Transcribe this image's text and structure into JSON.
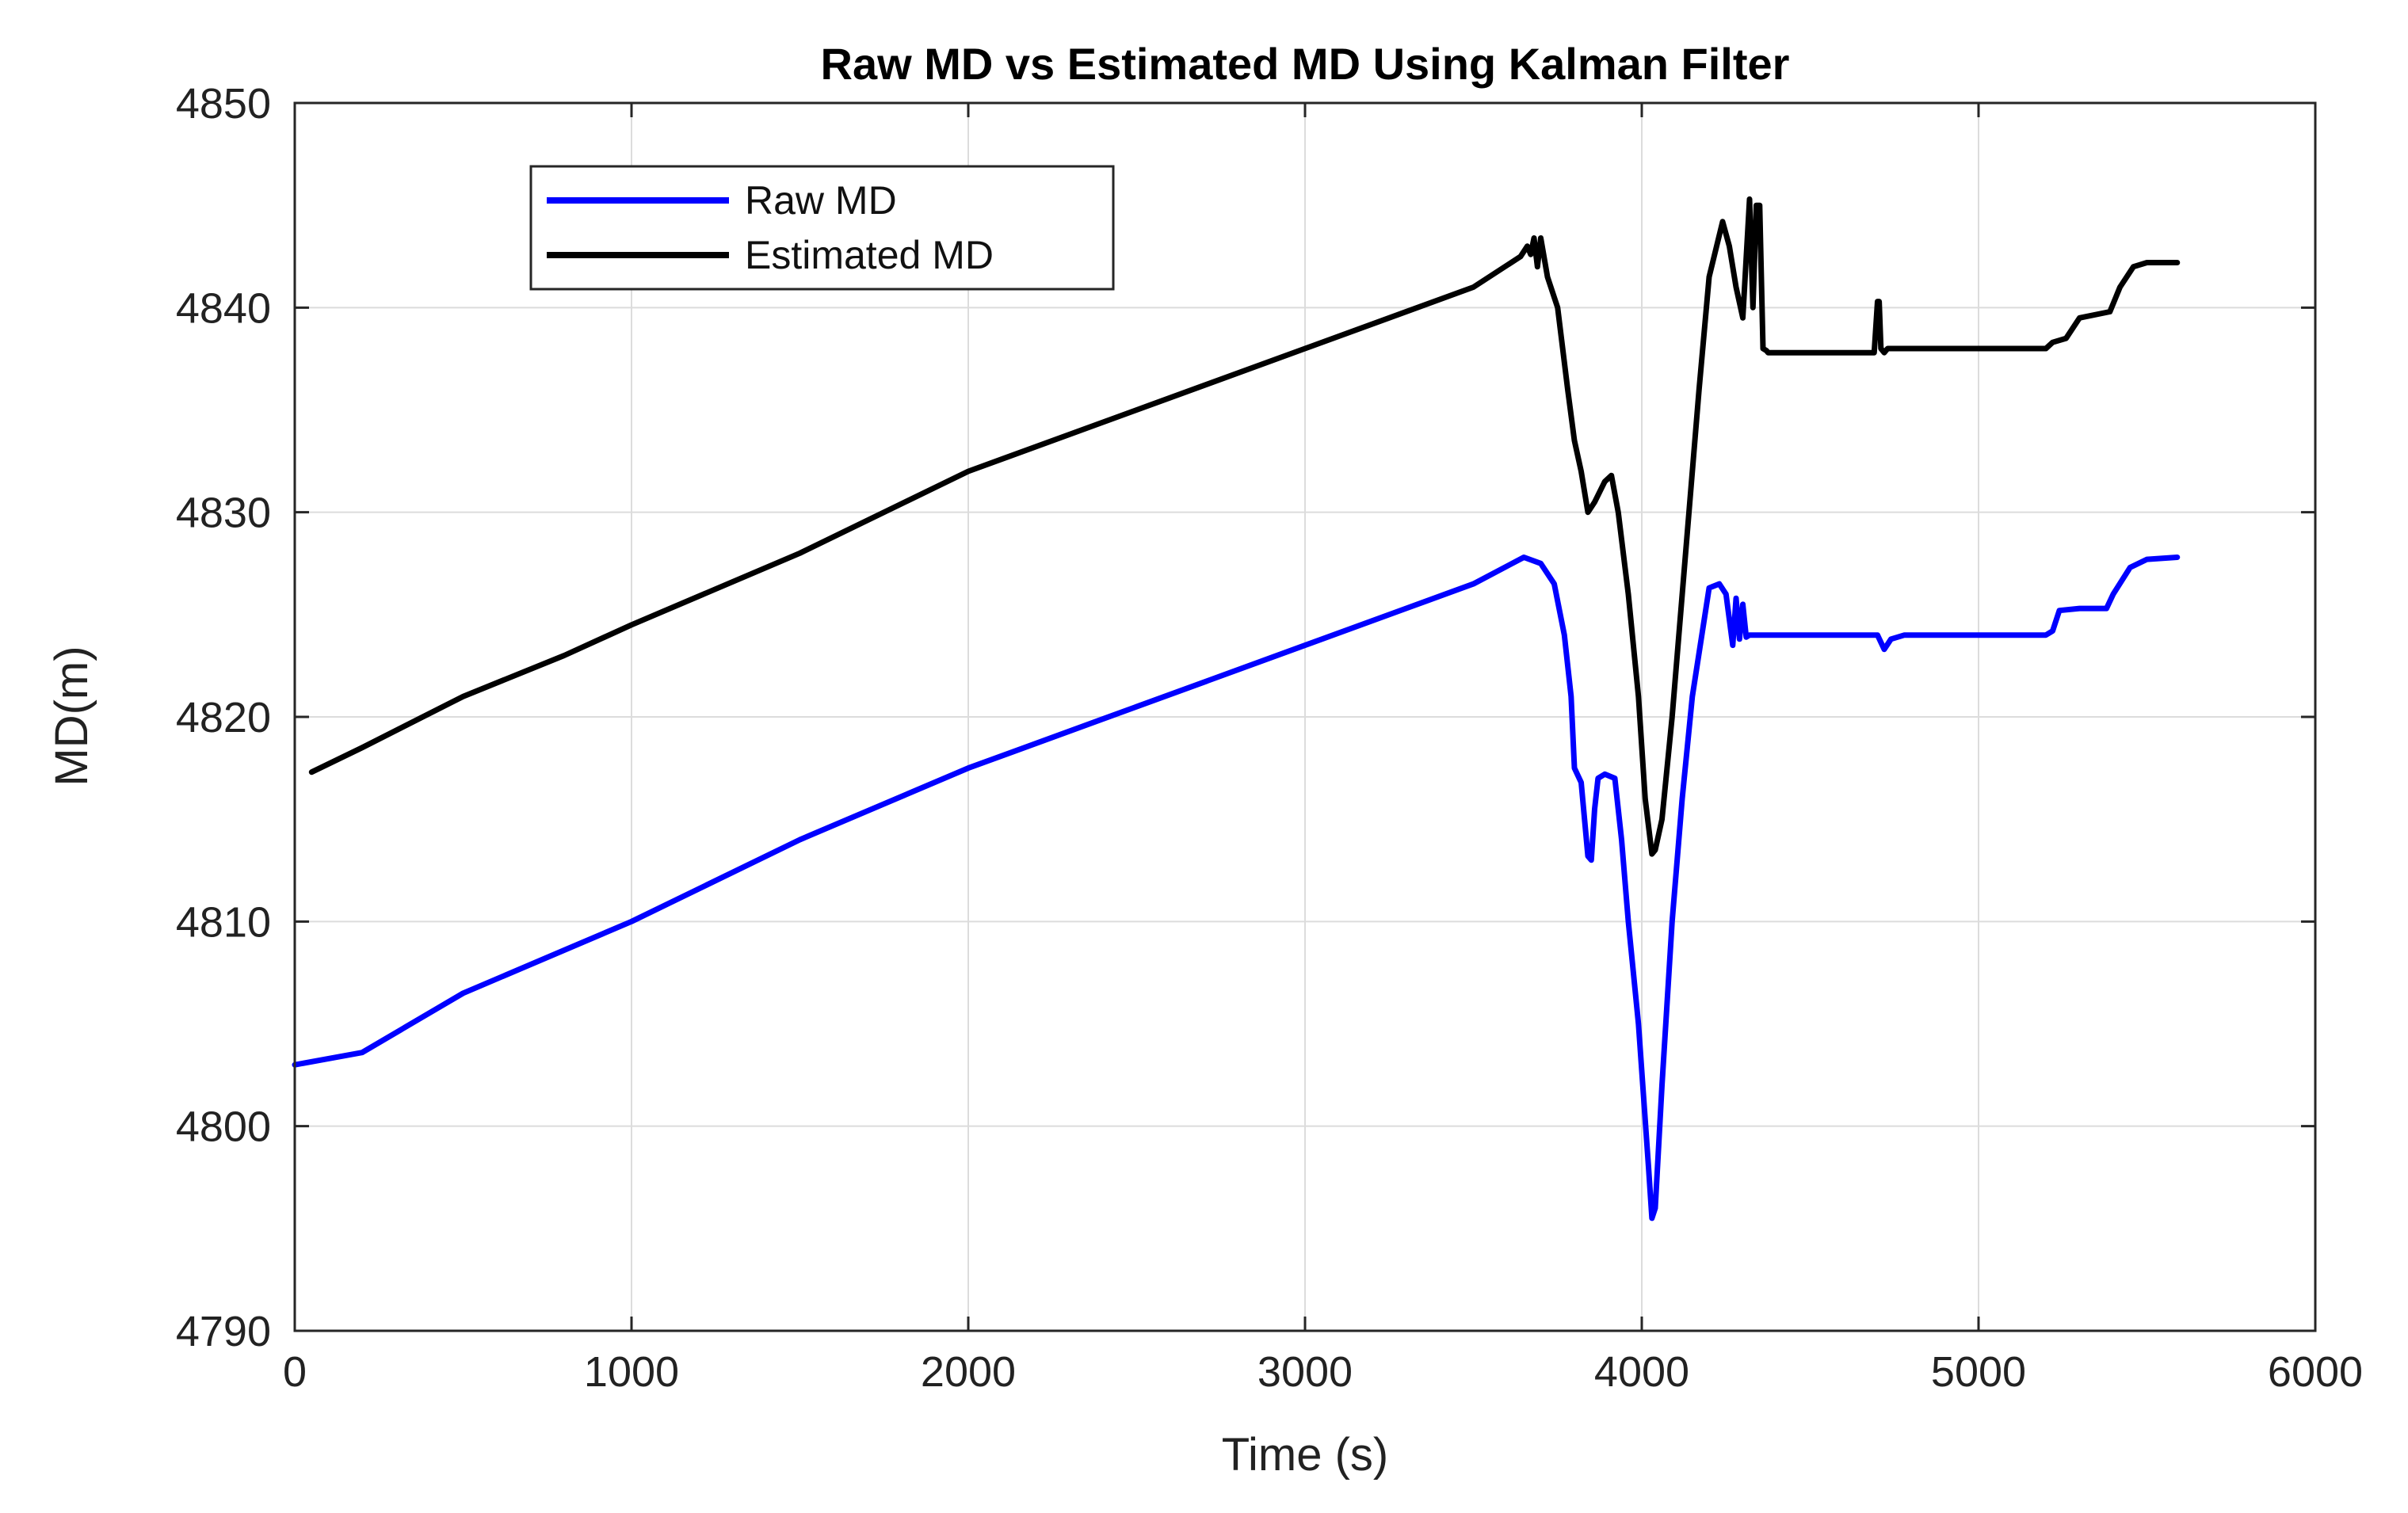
{
  "chart_data": {
    "type": "line",
    "title": "Raw MD vs Estimated MD Using Kalman Filter",
    "xlabel": "Time (s)",
    "ylabel": "MD(m)",
    "xlim": [
      0,
      6000
    ],
    "ylim": [
      4790,
      4850
    ],
    "xticks": [
      0,
      1000,
      2000,
      3000,
      4000,
      5000,
      6000
    ],
    "yticks": [
      4790,
      4800,
      4810,
      4820,
      4830,
      4840,
      4850
    ],
    "grid": true,
    "legend_position": "top-left",
    "series": [
      {
        "name": "Raw MD",
        "color": "#0000ff",
        "x": [
          0,
          200,
          500,
          800,
          1000,
          1500,
          2000,
          2500,
          3000,
          3500,
          3650,
          3700,
          3740,
          3770,
          3790,
          3800,
          3820,
          3840,
          3850,
          3860,
          3870,
          3890,
          3920,
          3940,
          3960,
          3990,
          4020,
          4030,
          4040,
          4060,
          4090,
          4120,
          4150,
          4200,
          4230,
          4250,
          4270,
          4280,
          4290,
          4300,
          4310,
          4320,
          4340,
          4400,
          4600,
          4700,
          4720,
          4740,
          4780,
          5000,
          5200,
          5220,
          5240,
          5300,
          5380,
          5400,
          5450,
          5500,
          5590
        ],
        "values": [
          4803.0,
          4803.6,
          4806.5,
          4808.6,
          4810.0,
          4814.0,
          4817.5,
          4820.5,
          4823.5,
          4826.5,
          4827.8,
          4827.5,
          4826.5,
          4824.0,
          4821.0,
          4817.5,
          4816.8,
          4813.2,
          4813.0,
          4815.5,
          4817.0,
          4817.2,
          4817.0,
          4814.0,
          4810.0,
          4805.0,
          4798.0,
          4795.5,
          4796.0,
          4802.0,
          4810.0,
          4816.0,
          4821.0,
          4826.3,
          4826.5,
          4826.0,
          4823.5,
          4825.8,
          4823.8,
          4825.5,
          4823.9,
          4824.0,
          4824.0,
          4824.0,
          4824.0,
          4824.0,
          4823.3,
          4823.8,
          4824.0,
          4824.0,
          4824.0,
          4824.2,
          4825.2,
          4825.3,
          4825.3,
          4826.0,
          4827.3,
          4827.7,
          4827.8
        ]
      },
      {
        "name": "Estimated MD",
        "color": "#000000",
        "x": [
          50,
          200,
          500,
          800,
          1000,
          1500,
          2000,
          2500,
          3000,
          3500,
          3640,
          3660,
          3670,
          3680,
          3690,
          3700,
          3720,
          3750,
          3780,
          3800,
          3820,
          3840,
          3860,
          3890,
          3910,
          3930,
          3960,
          3990,
          4010,
          4030,
          4040,
          4060,
          4090,
          4130,
          4170,
          4200,
          4240,
          4260,
          4280,
          4300,
          4320,
          4330,
          4340,
          4350,
          4360,
          4370,
          4375,
          4380,
          4400,
          4500,
          4690,
          4700,
          4705,
          4710,
          4720,
          4730,
          4800,
          5000,
          5200,
          5220,
          5260,
          5300,
          5390,
          5420,
          5460,
          5500,
          5590
        ],
        "values": [
          4817.3,
          4818.5,
          4821.0,
          4823.0,
          4824.5,
          4828.0,
          4832.0,
          4835.0,
          4838.0,
          4841.0,
          4842.5,
          4843.0,
          4842.6,
          4843.4,
          4842.0,
          4843.4,
          4841.5,
          4840.0,
          4836.0,
          4833.5,
          4832.0,
          4830.0,
          4830.5,
          4831.5,
          4831.8,
          4830.0,
          4826.0,
          4821.0,
          4816.0,
          4813.3,
          4813.5,
          4815.0,
          4820.0,
          4828.0,
          4836.0,
          4841.5,
          4844.2,
          4843.0,
          4841.0,
          4839.5,
          4845.3,
          4840.0,
          4845.0,
          4845.0,
          4838.0,
          4837.9,
          4837.8,
          4837.8,
          4837.8,
          4837.8,
          4837.8,
          4840.3,
          4840.3,
          4838.0,
          4837.8,
          4838.0,
          4838.0,
          4838.0,
          4838.0,
          4838.3,
          4838.5,
          4839.5,
          4839.8,
          4841.0,
          4842.0,
          4842.2,
          4842.2
        ]
      }
    ]
  }
}
